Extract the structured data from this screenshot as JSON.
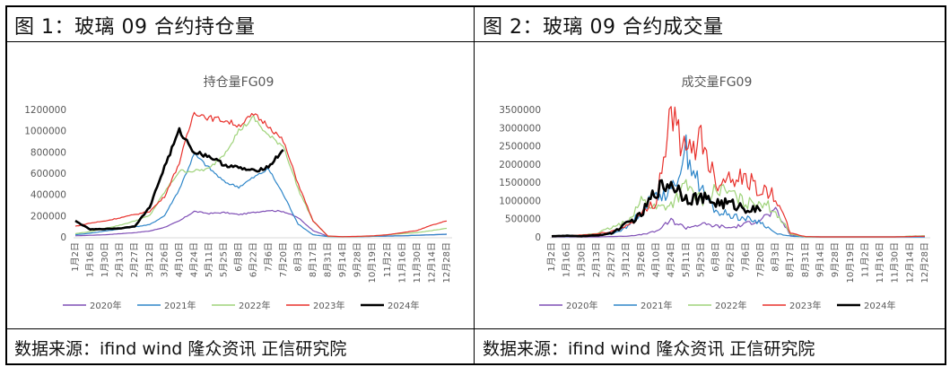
{
  "panels": [
    {
      "figure_title": "图 1：玻璃 09 合约持仓量",
      "source": "数据来源：ifind wind  隆众资讯  正信研究院"
    },
    {
      "figure_title": "图 2：玻璃 09 合约成交量",
      "source": "数据来源：ifind wind  隆众资讯  正信研究院"
    }
  ],
  "colors": {
    "2020年": "#7f4fb6",
    "2021年": "#2e86c9",
    "2022年": "#9fd37a",
    "2023年": "#e8302b",
    "2024年": "#000000"
  },
  "chart_data": [
    {
      "type": "line",
      "title": "持仓量FG09",
      "xlabel": "",
      "ylabel": "",
      "ylim": [
        0,
        1200000
      ],
      "yticks": [
        "0",
        "200000",
        "400000",
        "600000",
        "800000",
        "1000000",
        "1200000"
      ],
      "grid": false,
      "legend_position": "bottom",
      "categories": [
        "1月2日",
        "1月16日",
        "1月30日",
        "2月13日",
        "2月27日",
        "3月12日",
        "3月26日",
        "4月10日",
        "4月24日",
        "5月11日",
        "5月25日",
        "6月8日",
        "6月22日",
        "7月6日",
        "7月20日",
        "8月3日",
        "8月17日",
        "8月31日",
        "9月14日",
        "9月28日",
        "10月19日",
        "11月2日",
        "11月16日",
        "11月30日",
        "12月14日",
        "12月28日"
      ],
      "series": [
        {
          "name": "2020年",
          "values": [
            10000,
            15000,
            20000,
            30000,
            40000,
            55000,
            90000,
            150000,
            240000,
            220000,
            230000,
            210000,
            230000,
            250000,
            240000,
            180000,
            60000,
            5000,
            2000,
            3000,
            5000,
            8000,
            10000,
            15000,
            20000,
            25000
          ]
        },
        {
          "name": "2021年",
          "values": [
            20000,
            35000,
            55000,
            75000,
            95000,
            115000,
            200000,
            450000,
            780000,
            650000,
            520000,
            470000,
            560000,
            640000,
            400000,
            120000,
            20000,
            3000,
            2000,
            3000,
            5000,
            8000,
            10000,
            15000,
            20000,
            25000
          ]
        },
        {
          "name": "2022年",
          "values": [
            30000,
            50000,
            80000,
            110000,
            150000,
            200000,
            420000,
            620000,
            620000,
            640000,
            780000,
            1000000,
            1120000,
            950000,
            860000,
            450000,
            150000,
            5000,
            2000,
            3000,
            8000,
            20000,
            30000,
            40000,
            60000,
            80000
          ]
        },
        {
          "name": "2023年",
          "values": [
            100000,
            130000,
            150000,
            180000,
            210000,
            240000,
            380000,
            700000,
            1180000,
            1120000,
            1100000,
            1050000,
            1150000,
            1050000,
            900000,
            500000,
            150000,
            8000,
            2000,
            5000,
            10000,
            20000,
            40000,
            60000,
            110000,
            150000
          ]
        },
        {
          "name": "2024年",
          "values": [
            150000,
            70000,
            75000,
            80000,
            100000,
            280000,
            660000,
            1000000,
            800000,
            760000,
            680000,
            650000,
            620000,
            660000,
            820000
          ]
        }
      ]
    },
    {
      "type": "line",
      "title": "成交量FG09",
      "xlabel": "",
      "ylabel": "",
      "ylim": [
        0,
        3500000
      ],
      "yticks": [
        "0",
        "500000",
        "1000000",
        "1500000",
        "2000000",
        "2500000",
        "3000000",
        "3500000"
      ],
      "grid": false,
      "legend_position": "bottom",
      "categories": [
        "1月2日",
        "1月16日",
        "1月30日",
        "2月13日",
        "2月27日",
        "3月12日",
        "3月26日",
        "4月10日",
        "4月24日",
        "5月11日",
        "5月25日",
        "6月8日",
        "6月22日",
        "7月6日",
        "7月20日",
        "8月3日",
        "8月17日",
        "8月31日",
        "9月14日",
        "9月28日",
        "10月19日",
        "11月2日",
        "11月16日",
        "11月30日",
        "12月14日",
        "12月28日"
      ],
      "series": [
        {
          "name": "2020年",
          "values": [
            0,
            0,
            0,
            0,
            10000,
            20000,
            60000,
            150000,
            450000,
            250000,
            350000,
            300000,
            250000,
            350000,
            500000,
            700000,
            50000,
            0,
            0,
            0,
            0,
            0,
            0,
            0,
            0,
            0
          ]
        },
        {
          "name": "2021年",
          "values": [
            20000,
            10000,
            20000,
            40000,
            80000,
            250000,
            700000,
            1200000,
            1200000,
            2400000,
            1300000,
            700000,
            600000,
            500000,
            400000,
            100000,
            20000,
            0,
            0,
            0,
            0,
            0,
            0,
            0,
            0,
            0
          ]
        },
        {
          "name": "2022年",
          "values": [
            10000,
            20000,
            50000,
            100000,
            250000,
            400000,
            1000000,
            800000,
            900000,
            1400000,
            1000000,
            1300000,
            1200000,
            900000,
            1000000,
            700000,
            80000,
            0,
            0,
            0,
            0,
            0,
            0,
            0,
            20000,
            30000
          ]
        },
        {
          "name": "2023年",
          "values": [
            10000,
            30000,
            50000,
            80000,
            150000,
            300000,
            600000,
            1000000,
            3450000,
            2200000,
            2800000,
            1500000,
            1700000,
            1600000,
            1300000,
            1100000,
            100000,
            10000,
            0,
            0,
            0,
            0,
            0,
            0,
            10000,
            20000
          ]
        },
        {
          "name": "2024年",
          "values": [
            20000,
            30000,
            20000,
            40000,
            100000,
            350000,
            600000,
            1300000,
            1500000,
            1100000,
            1050000,
            950000,
            900000,
            800000,
            700000
          ]
        }
      ]
    }
  ]
}
